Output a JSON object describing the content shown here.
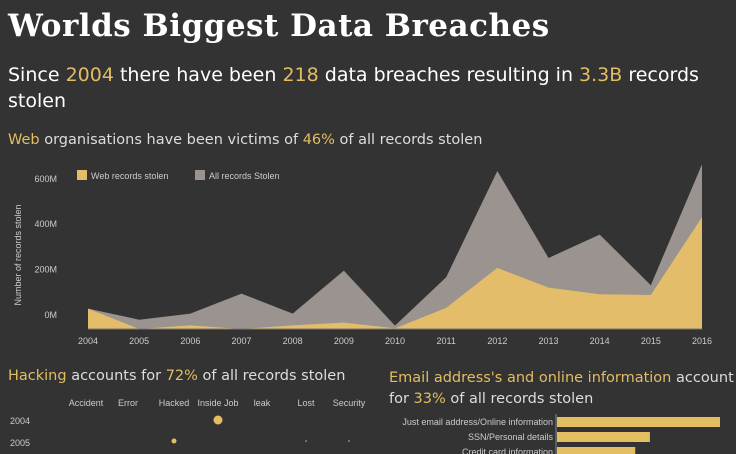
{
  "title": "Worlds Biggest Data Breaches",
  "subtitle": {
    "p1": "Since ",
    "year": "2004",
    "p2": " there have been ",
    "count": "218",
    "p3": " data breaches resulting in ",
    "records": "3.3B",
    "p4": " records stolen"
  },
  "web_heading": {
    "hl1": "Web",
    "p1": " organisations have been victims of ",
    "hl2": "46%",
    "p2": " of all records stolen"
  },
  "hack_heading": {
    "hl1": "Hacking",
    "p1": " accounts for ",
    "hl2": "72%",
    "p2": " of all records stolen"
  },
  "email_heading": {
    "hl1": "Email address's and online information",
    "p1": " account for ",
    "hl2": "33%",
    "p2": " of all records stolen"
  },
  "colors": {
    "web": "#e3bd6a",
    "all": "#9a938f",
    "accent": "#e3bd62",
    "background": "#333333"
  },
  "chart_data": [
    {
      "type": "area",
      "ylabel": "Number of records stolen",
      "yticks": [
        "0M",
        "200M",
        "400M",
        "600M"
      ],
      "ylim": [
        0,
        730
      ],
      "legend_position": "top-left",
      "x": [
        "2004",
        "2005",
        "2006",
        "2007",
        "2008",
        "2009",
        "2010",
        "2011",
        "2012",
        "2013",
        "2014",
        "2015",
        "2016"
      ],
      "series": [
        {
          "name": "All records Stolen",
          "values": [
            90,
            41,
            68,
            156,
            68,
            257,
            15,
            228,
            696,
            313,
            416,
            193,
            725
          ]
        },
        {
          "name": "Web records stolen",
          "values": [
            90,
            0,
            16,
            0,
            16,
            28,
            3,
            93,
            269,
            182,
            153,
            150,
            493
          ]
        }
      ]
    },
    {
      "type": "scatter",
      "columns": [
        "Accident",
        "Error",
        "Hacked",
        "Inside Job",
        "leak",
        "Lost",
        "Security"
      ],
      "rows": [
        "2004",
        "2005"
      ],
      "points": [
        {
          "row": "2004",
          "col": "Inside Job",
          "size": "large"
        },
        {
          "row": "2005",
          "col": "Hacked",
          "size": "medium"
        },
        {
          "row": "2005",
          "col": "Lost",
          "size": "tiny"
        },
        {
          "row": "2005",
          "col": "Security",
          "size": "tiny"
        }
      ]
    },
    {
      "type": "bar",
      "orientation": "horizontal",
      "categories": [
        "Just email address/Online information",
        "SSN/Personal details",
        "Credit card information"
      ],
      "values": [
        100,
        57,
        48
      ]
    }
  ]
}
